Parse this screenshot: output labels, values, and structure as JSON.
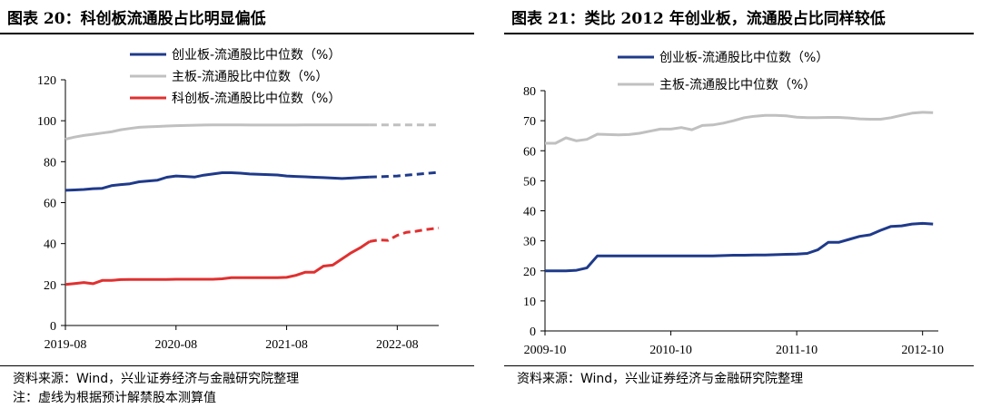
{
  "left": {
    "title": "图表 20：科创板流通股占比明显偏低",
    "source": "资料来源：Wind，兴业证券经济与金融研究院整理",
    "note": "注：虚线为根据预计解禁股本测算值"
  },
  "right": {
    "title": "图表 21：类比 2012 年创业板，流通股占比同样较低",
    "source": "资料来源：Wind，兴业证券经济与金融研究院整理"
  },
  "chart_data": [
    {
      "type": "line",
      "title": "科创板流通股占比明显偏低",
      "ylim": [
        0,
        120
      ],
      "yticks": [
        "0",
        "20",
        "40",
        "60",
        "80",
        "100",
        "120"
      ],
      "xticks": [
        "2019-08",
        "2020-08",
        "2021-08",
        "2022-08"
      ],
      "xtick_pos": [
        0,
        12,
        24,
        36
      ],
      "x_range": [
        0,
        40.5
      ],
      "grid": false,
      "legend": "top-center",
      "series": [
        {
          "name": "创业板-流通股比中位数（%）",
          "color": "#1f3a8a",
          "solid": [
            [
              0,
              66
            ],
            [
              1,
              66.2
            ],
            [
              2,
              66.4
            ],
            [
              3,
              66.8
            ],
            [
              4,
              67
            ],
            [
              5,
              68.3
            ],
            [
              6,
              68.8
            ],
            [
              7,
              69.2
            ],
            [
              8,
              70.2
            ],
            [
              9,
              70.6
            ],
            [
              10,
              71
            ],
            [
              11,
              72.4
            ],
            [
              12,
              73
            ],
            [
              13,
              72.8
            ],
            [
              14,
              72.5
            ],
            [
              15,
              73.4
            ],
            [
              16,
              74
            ],
            [
              17,
              74.6
            ],
            [
              18,
              74.6
            ],
            [
              19,
              74.4
            ],
            [
              20,
              74
            ],
            [
              21,
              73.8
            ],
            [
              22,
              73.7
            ],
            [
              23,
              73.5
            ],
            [
              24,
              73
            ],
            [
              25,
              72.8
            ],
            [
              26,
              72.6
            ],
            [
              27,
              72.4
            ],
            [
              28,
              72.2
            ],
            [
              29,
              72
            ],
            [
              30,
              71.8
            ],
            [
              31,
              72
            ],
            [
              32,
              72.3
            ],
            [
              33,
              72.5
            ]
          ],
          "dashed": [
            [
              33,
              72.5
            ],
            [
              34.5,
              72.7
            ],
            [
              36,
              73
            ],
            [
              37.5,
              73.6
            ],
            [
              39,
              74.2
            ],
            [
              40.5,
              74.8
            ]
          ]
        },
        {
          "name": "主板-流通股比中位数（%）",
          "color": "#c0c0c0",
          "solid": [
            [
              0,
              91
            ],
            [
              1,
              92
            ],
            [
              2,
              92.8
            ],
            [
              3,
              93.4
            ],
            [
              4,
              94
            ],
            [
              5,
              94.6
            ],
            [
              6,
              95.6
            ],
            [
              7,
              96.2
            ],
            [
              8,
              96.8
            ],
            [
              9,
              97
            ],
            [
              10,
              97.2
            ],
            [
              11,
              97.4
            ],
            [
              12,
              97.6
            ],
            [
              13,
              97.7
            ],
            [
              14,
              97.8
            ],
            [
              15,
              97.9
            ],
            [
              16,
              98
            ],
            [
              17,
              98
            ],
            [
              18,
              98
            ],
            [
              19,
              98
            ],
            [
              20,
              97.9
            ],
            [
              21,
              97.9
            ],
            [
              22,
              97.9
            ],
            [
              23,
              97.9
            ],
            [
              24,
              97.9
            ],
            [
              25,
              97.9
            ],
            [
              26,
              98
            ],
            [
              27,
              98
            ],
            [
              28,
              98
            ],
            [
              29,
              98
            ],
            [
              30,
              98
            ],
            [
              31,
              98
            ],
            [
              32,
              98
            ],
            [
              33,
              98
            ]
          ],
          "dashed": [
            [
              33,
              98
            ],
            [
              36,
              98
            ],
            [
              40.5,
              98
            ]
          ]
        },
        {
          "name": "科创板-流通股比中位数（%）",
          "color": "#e03030",
          "solid": [
            [
              0,
              20
            ],
            [
              1,
              20.5
            ],
            [
              2,
              21
            ],
            [
              3,
              20.4
            ],
            [
              4,
              22
            ],
            [
              5,
              22
            ],
            [
              6,
              22.4
            ],
            [
              7,
              22.5
            ],
            [
              8,
              22.5
            ],
            [
              9,
              22.5
            ],
            [
              10,
              22.5
            ],
            [
              11,
              22.5
            ],
            [
              12,
              22.6
            ],
            [
              13,
              22.6
            ],
            [
              14,
              22.6
            ],
            [
              15,
              22.6
            ],
            [
              16,
              22.6
            ],
            [
              17,
              22.8
            ],
            [
              18,
              23.4
            ],
            [
              19,
              23.4
            ],
            [
              20,
              23.4
            ],
            [
              21,
              23.4
            ],
            [
              22,
              23.4
            ],
            [
              23,
              23.4
            ],
            [
              24,
              23.5
            ],
            [
              25,
              24.5
            ],
            [
              26,
              26
            ],
            [
              27,
              26
            ],
            [
              28,
              29
            ],
            [
              29,
              29.5
            ],
            [
              30,
              32.5
            ],
            [
              31,
              35.5
            ],
            [
              32,
              38
            ],
            [
              33,
              41
            ]
          ],
          "dashed": [
            [
              33,
              41
            ],
            [
              34,
              41.8
            ],
            [
              35,
              41.6
            ],
            [
              36,
              44
            ],
            [
              37,
              45.5
            ],
            [
              38,
              46
            ],
            [
              39,
              46.8
            ],
            [
              40.5,
              47.6
            ]
          ]
        }
      ]
    },
    {
      "type": "line",
      "title": "类比 2012 年创业板，流通股占比同样较低",
      "ylim": [
        0,
        80
      ],
      "yticks": [
        "0",
        "10",
        "20",
        "30",
        "40",
        "50",
        "60",
        "70",
        "80"
      ],
      "xticks": [
        "2009-10",
        "2010-10",
        "2011-10",
        "2012-10"
      ],
      "xtick_pos": [
        0,
        12,
        24,
        36
      ],
      "x_range": [
        0,
        37.5
      ],
      "grid": false,
      "legend": "top-center",
      "series": [
        {
          "name": "创业板-流通股比中位数（%）",
          "color": "#1f3a8a",
          "solid": [
            [
              0,
              20
            ],
            [
              1,
              20
            ],
            [
              2,
              20
            ],
            [
              3,
              20.2
            ],
            [
              4,
              21
            ],
            [
              5,
              25
            ],
            [
              6,
              25
            ],
            [
              7,
              25
            ],
            [
              8,
              25
            ],
            [
              9,
              25
            ],
            [
              10,
              25
            ],
            [
              11,
              25
            ],
            [
              12,
              25
            ],
            [
              13,
              25
            ],
            [
              14,
              25
            ],
            [
              15,
              25
            ],
            [
              16,
              25
            ],
            [
              17,
              25.1
            ],
            [
              18,
              25.2
            ],
            [
              19,
              25.2
            ],
            [
              20,
              25.3
            ],
            [
              21,
              25.3
            ],
            [
              22,
              25.4
            ],
            [
              23,
              25.5
            ],
            [
              24,
              25.6
            ],
            [
              25,
              25.8
            ],
            [
              26,
              27
            ],
            [
              27,
              29.5
            ],
            [
              28,
              29.5
            ],
            [
              29,
              30.5
            ],
            [
              30,
              31.5
            ],
            [
              31,
              32
            ],
            [
              32,
              33.5
            ],
            [
              33,
              34.8
            ],
            [
              34,
              35
            ],
            [
              35,
              35.6
            ],
            [
              36,
              35.8
            ],
            [
              37,
              35.6
            ]
          ]
        },
        {
          "name": "主板-流通股比中位数（%）",
          "color": "#c0c0c0",
          "solid": [
            [
              0,
              62.5
            ],
            [
              1,
              62.5
            ],
            [
              2,
              64.3
            ],
            [
              3,
              63.3
            ],
            [
              4,
              63.8
            ],
            [
              5,
              65.5
            ],
            [
              6,
              65.4
            ],
            [
              7,
              65.3
            ],
            [
              8,
              65.4
            ],
            [
              9,
              65.8
            ],
            [
              10,
              66.5
            ],
            [
              11,
              67.2
            ],
            [
              12,
              67.2
            ],
            [
              13,
              67.7
            ],
            [
              14,
              67
            ],
            [
              15,
              68.4
            ],
            [
              16,
              68.6
            ],
            [
              17,
              69.2
            ],
            [
              18,
              70
            ],
            [
              19,
              71
            ],
            [
              20,
              71.5
            ],
            [
              21,
              71.8
            ],
            [
              22,
              71.8
            ],
            [
              23,
              71.6
            ],
            [
              24,
              71.2
            ],
            [
              25,
              71
            ],
            [
              26,
              71
            ],
            [
              27,
              71.1
            ],
            [
              28,
              71.1
            ],
            [
              29,
              70.9
            ],
            [
              30,
              70.6
            ],
            [
              31,
              70.5
            ],
            [
              32,
              70.5
            ],
            [
              33,
              71
            ],
            [
              34,
              71.8
            ],
            [
              35,
              72.5
            ],
            [
              36,
              72.8
            ],
            [
              37,
              72.7
            ]
          ]
        }
      ]
    }
  ]
}
